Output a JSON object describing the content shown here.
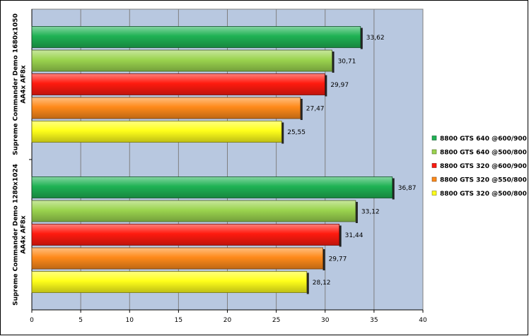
{
  "chart_data": {
    "type": "bar",
    "orientation": "horizontal",
    "categories": [
      [
        "Supreme Commander Demo 1680x1050",
        "AA4x AF8x"
      ],
      [
        "Supreme Commander Demo 1280x1024",
        "AA4x AF8x"
      ]
    ],
    "series": [
      {
        "name": "8800 GTS 640 @600/900",
        "color": "#1fb254",
        "values": [
          33.62,
          36.87
        ]
      },
      {
        "name": "8800 GTS 640 @500/800",
        "color": "#9bd44f",
        "values": [
          30.71,
          33.12
        ]
      },
      {
        "name": "8800 GTS 320 @600/900",
        "color": "#ff1a0f",
        "values": [
          29.97,
          31.44
        ]
      },
      {
        "name": "8800 GTS 320 @550/800",
        "color": "#ff8a1a",
        "values": [
          27.47,
          29.77
        ]
      },
      {
        "name": "8800 GTS 320 @500/800",
        "color": "#ffff1a",
        "values": [
          25.55,
          28.12
        ]
      }
    ],
    "data_labels": [
      [
        "33,62",
        "30,71",
        "29,97",
        "27,47",
        "25,55"
      ],
      [
        "36,87",
        "33,12",
        "31,44",
        "29,77",
        "28,12"
      ]
    ],
    "xlim": [
      0,
      40
    ],
    "xticks": [
      0,
      5,
      10,
      15,
      20,
      25,
      30,
      35,
      40
    ],
    "xlabel": "",
    "ylabel": "",
    "title": "",
    "grid": true,
    "legend_position": "right",
    "plot_background": "#b8c8e0"
  }
}
